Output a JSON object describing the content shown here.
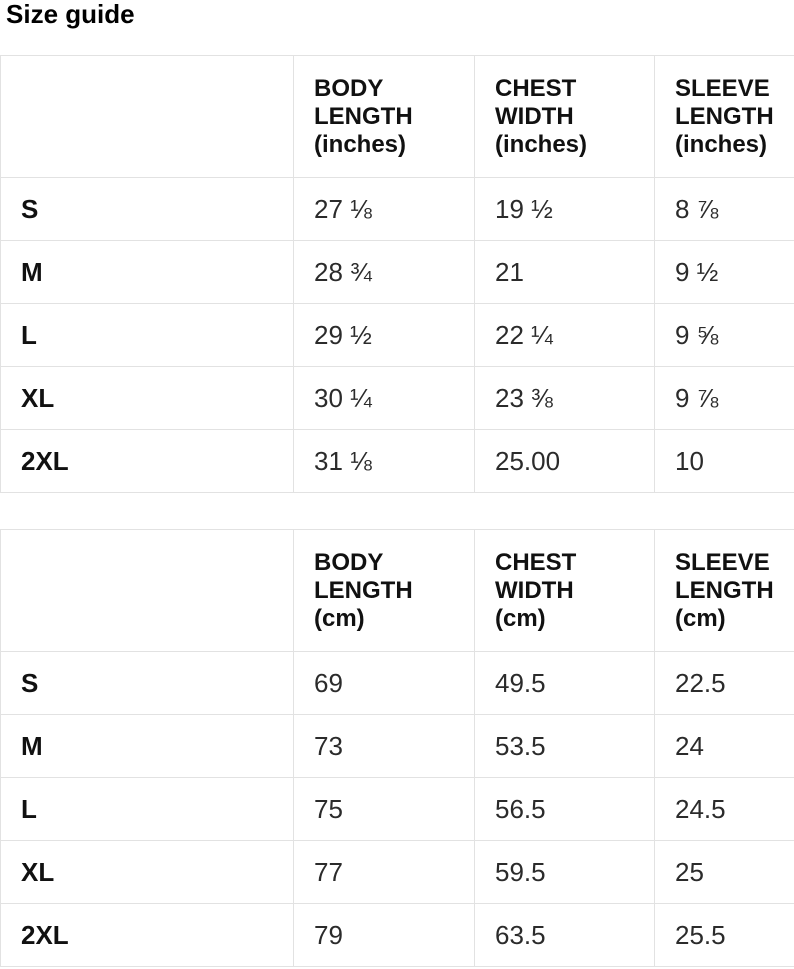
{
  "page": {
    "title": "Size guide"
  },
  "tables": [
    {
      "unit": "inches",
      "headers": [
        "",
        "BODY\nLENGTH\n(inches)",
        "CHEST\nWIDTH\n(inches)",
        "SLEEVE\nLENGTH\n(inches)"
      ],
      "rows": [
        {
          "size": "S",
          "values": [
            "27 ⅛",
            "19 ½",
            "8 ⅞"
          ]
        },
        {
          "size": "M",
          "values": [
            "28 ¾",
            "21",
            "9 ½"
          ]
        },
        {
          "size": "L",
          "values": [
            "29 ½",
            "22 ¼",
            "9 ⅝"
          ]
        },
        {
          "size": "XL",
          "values": [
            "30 ¼",
            "23 ⅜",
            "9 ⅞"
          ]
        },
        {
          "size": "2XL",
          "values": [
            "31 ⅛",
            "25.00",
            "10"
          ]
        }
      ]
    },
    {
      "unit": "cm",
      "headers": [
        "",
        "BODY\nLENGTH\n(cm)",
        "CHEST\nWIDTH\n(cm)",
        "SLEEVE\nLENGTH\n(cm)"
      ],
      "rows": [
        {
          "size": "S",
          "values": [
            "69",
            "49.5",
            "22.5"
          ]
        },
        {
          "size": "M",
          "values": [
            "73",
            "53.5",
            "24"
          ]
        },
        {
          "size": "L",
          "values": [
            "75",
            "56.5",
            "24.5"
          ]
        },
        {
          "size": "XL",
          "values": [
            "77",
            "59.5",
            "25"
          ]
        },
        {
          "size": "2XL",
          "values": [
            "79",
            "63.5",
            "25.5"
          ]
        }
      ]
    }
  ]
}
